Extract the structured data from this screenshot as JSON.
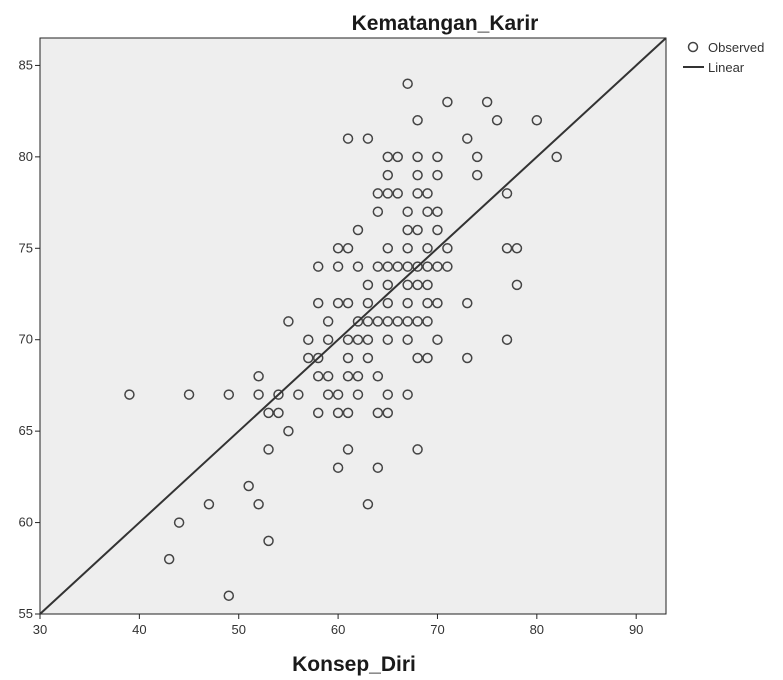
{
  "chart_data": {
    "type": "scatter",
    "title": "Kematangan_Karir",
    "xlabel": "Konsep_Diri",
    "ylabel": "",
    "xlim": [
      30,
      93
    ],
    "ylim": [
      55,
      86.5
    ],
    "xticks": [
      30,
      40,
      50,
      60,
      70,
      80,
      90
    ],
    "yticks": [
      55,
      60,
      65,
      70,
      75,
      80,
      85
    ],
    "grid": false,
    "legend_position": "top-right",
    "legend": [
      {
        "label": "Observed",
        "symbol": "open-circle"
      },
      {
        "label": "Linear",
        "symbol": "line"
      }
    ],
    "colors": {
      "plot_background": "#eeeeee",
      "marker": "#444444",
      "fit_line": "#333333",
      "axis": "#222222"
    },
    "fit_line": {
      "x": [
        30,
        93
      ],
      "y": [
        55,
        86.5
      ]
    },
    "points": [
      [
        67,
        84
      ],
      [
        71,
        83
      ],
      [
        75,
        83
      ],
      [
        68,
        82
      ],
      [
        76,
        82
      ],
      [
        80,
        82
      ],
      [
        61,
        81
      ],
      [
        63,
        81
      ],
      [
        73,
        81
      ],
      [
        65,
        80
      ],
      [
        66,
        80
      ],
      [
        68,
        80
      ],
      [
        70,
        80
      ],
      [
        74,
        80
      ],
      [
        82,
        80
      ],
      [
        65,
        79
      ],
      [
        68,
        79
      ],
      [
        70,
        79
      ],
      [
        74,
        79
      ],
      [
        64,
        78
      ],
      [
        65,
        78
      ],
      [
        66,
        78
      ],
      [
        68,
        78
      ],
      [
        69,
        78
      ],
      [
        77,
        78
      ],
      [
        64,
        77
      ],
      [
        67,
        77
      ],
      [
        69,
        77
      ],
      [
        70,
        77
      ],
      [
        62,
        76
      ],
      [
        67,
        76
      ],
      [
        68,
        76
      ],
      [
        70,
        76
      ],
      [
        60,
        75
      ],
      [
        61,
        75
      ],
      [
        65,
        75
      ],
      [
        67,
        75
      ],
      [
        69,
        75
      ],
      [
        71,
        75
      ],
      [
        77,
        75
      ],
      [
        78,
        75
      ],
      [
        58,
        74
      ],
      [
        60,
        74
      ],
      [
        62,
        74
      ],
      [
        64,
        74
      ],
      [
        65,
        74
      ],
      [
        66,
        74
      ],
      [
        67,
        74
      ],
      [
        68,
        74
      ],
      [
        69,
        74
      ],
      [
        70,
        74
      ],
      [
        71,
        74
      ],
      [
        63,
        73
      ],
      [
        65,
        73
      ],
      [
        67,
        73
      ],
      [
        68,
        73
      ],
      [
        69,
        73
      ],
      [
        78,
        73
      ],
      [
        58,
        72
      ],
      [
        60,
        72
      ],
      [
        61,
        72
      ],
      [
        63,
        72
      ],
      [
        65,
        72
      ],
      [
        67,
        72
      ],
      [
        69,
        72
      ],
      [
        70,
        72
      ],
      [
        73,
        72
      ],
      [
        55,
        71
      ],
      [
        59,
        71
      ],
      [
        62,
        71
      ],
      [
        63,
        71
      ],
      [
        64,
        71
      ],
      [
        65,
        71
      ],
      [
        66,
        71
      ],
      [
        67,
        71
      ],
      [
        68,
        71
      ],
      [
        69,
        71
      ],
      [
        57,
        70
      ],
      [
        59,
        70
      ],
      [
        61,
        70
      ],
      [
        62,
        70
      ],
      [
        63,
        70
      ],
      [
        65,
        70
      ],
      [
        67,
        70
      ],
      [
        70,
        70
      ],
      [
        77,
        70
      ],
      [
        57,
        69
      ],
      [
        58,
        69
      ],
      [
        61,
        69
      ],
      [
        63,
        69
      ],
      [
        68,
        69
      ],
      [
        69,
        69
      ],
      [
        73,
        69
      ],
      [
        52,
        68
      ],
      [
        58,
        68
      ],
      [
        59,
        68
      ],
      [
        61,
        68
      ],
      [
        62,
        68
      ],
      [
        64,
        68
      ],
      [
        39,
        67
      ],
      [
        45,
        67
      ],
      [
        49,
        67
      ],
      [
        52,
        67
      ],
      [
        54,
        67
      ],
      [
        56,
        67
      ],
      [
        59,
        67
      ],
      [
        60,
        67
      ],
      [
        62,
        67
      ],
      [
        65,
        67
      ],
      [
        67,
        67
      ],
      [
        53,
        66
      ],
      [
        54,
        66
      ],
      [
        58,
        66
      ],
      [
        60,
        66
      ],
      [
        61,
        66
      ],
      [
        64,
        66
      ],
      [
        65,
        66
      ],
      [
        55,
        65
      ],
      [
        53,
        64
      ],
      [
        61,
        64
      ],
      [
        68,
        64
      ],
      [
        60,
        63
      ],
      [
        64,
        63
      ],
      [
        51,
        62
      ],
      [
        47,
        61
      ],
      [
        52,
        61
      ],
      [
        63,
        61
      ],
      [
        44,
        60
      ],
      [
        53,
        59
      ],
      [
        43,
        58
      ],
      [
        49,
        56
      ]
    ]
  }
}
